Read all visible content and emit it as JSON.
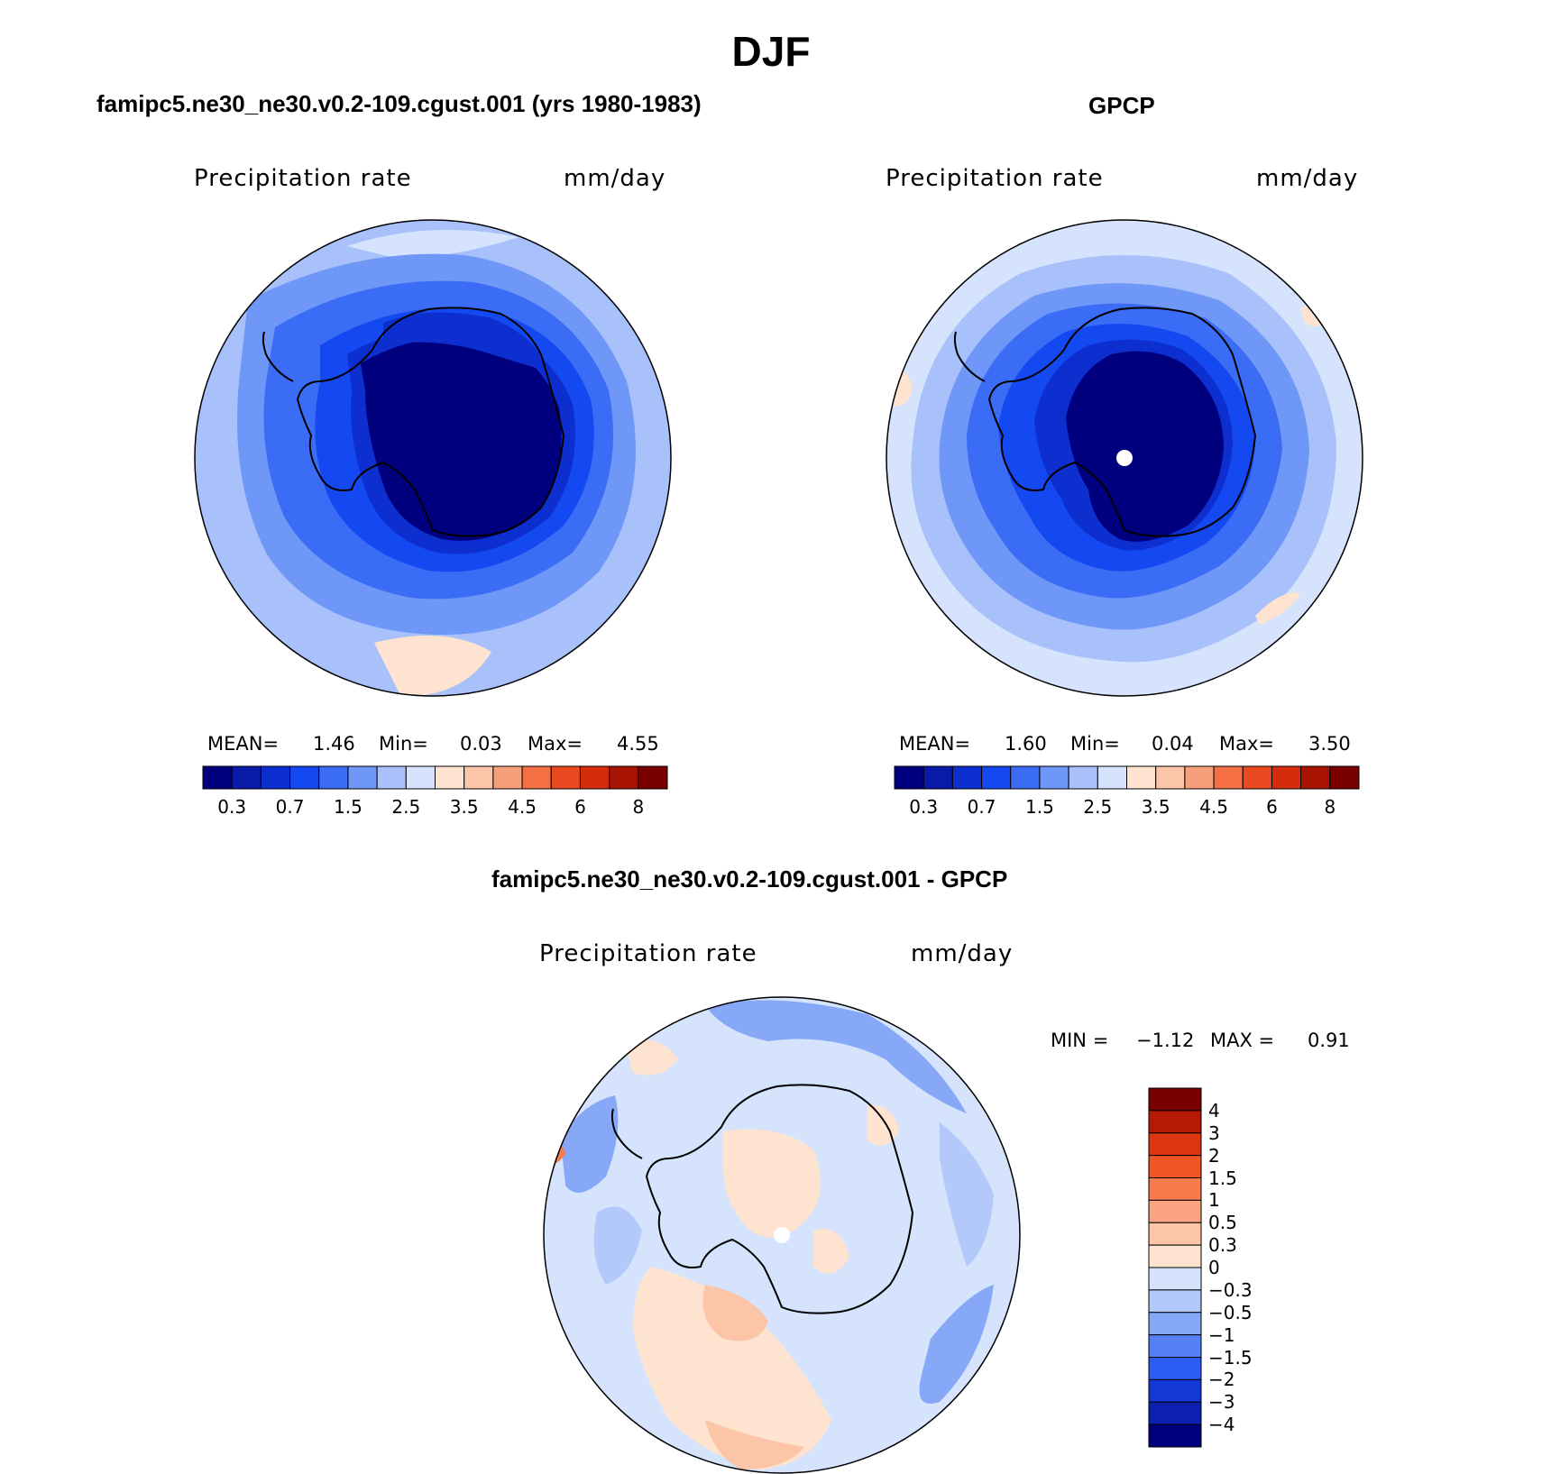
{
  "title": "DJF",
  "panels": [
    {
      "title": "famipc5.ne30_ne30.v0.2-109.cgust.001 (yrs 1980-1983)",
      "variable": "Precipitation rate",
      "units": "mm/day",
      "stats": {
        "mean_label": "MEAN=",
        "mean": "1.46",
        "min_label": "Min=",
        "min": "0.03",
        "max_label": "Max=",
        "max": "4.55"
      }
    },
    {
      "title": "GPCP",
      "variable": "Precipitation rate",
      "units": "mm/day",
      "stats": {
        "mean_label": "MEAN=",
        "mean": "1.60",
        "min_label": "Min=",
        "min": "0.04",
        "max_label": "Max=",
        "max": "3.50"
      }
    },
    {
      "title": "famipc5.ne30_ne30.v0.2-109.cgust.001 - GPCP",
      "variable": "Precipitation rate",
      "units": "mm/day",
      "stats": {
        "min_label": "MIN =",
        "min": "−1.12",
        "max_label": "MAX =",
        "max": "0.91"
      }
    }
  ],
  "colorbar_top": {
    "orientation": "horizontal",
    "tick_labels": [
      "0.3",
      "0.7",
      "1.5",
      "2.5",
      "3.5",
      "4.5",
      "6",
      "8"
    ],
    "colors": [
      "#00007f",
      "#0a1aa8",
      "#0d2fd0",
      "#1448f0",
      "#3a6cf5",
      "#6f97f7",
      "#a9c1fa",
      "#d5e4fc",
      "#fde3d0",
      "#fcc4a8",
      "#f79e7a",
      "#f46f44",
      "#ea4a1f",
      "#d42c0c",
      "#a81404",
      "#7a0000"
    ]
  },
  "colorbar_diff": {
    "orientation": "vertical",
    "tick_labels": [
      "4",
      "3",
      "2",
      "1.5",
      "1",
      "0.5",
      "0.3",
      "0",
      "−0.3",
      "−0.5",
      "−1",
      "−1.5",
      "−2",
      "−3",
      "−4"
    ],
    "colors": [
      "#7a0000",
      "#b41a04",
      "#dc3610",
      "#ef5526",
      "#f67c4d",
      "#fba483",
      "#fcc5a8",
      "#fde3d0",
      "#d5e4fc",
      "#b2c9fa",
      "#86a8f7",
      "#5580f4",
      "#2c5cf1",
      "#1238d6",
      "#0b20b0",
      "#00007f"
    ]
  },
  "map_colors": {
    "level_0": "#00007f",
    "level_1": "#0a1aa8",
    "level_2": "#0d2fd0",
    "level_3": "#1448f0",
    "level_4": "#3a6cf5",
    "level_5": "#6f97f7",
    "level_6": "#a9c1fa",
    "level_7": "#d5e4fc",
    "level_8": "#fde3d0",
    "level_9": "#fcc4a8",
    "diff_neg_small": "#d5e4fc",
    "diff_neg_mid": "#b2c9fa",
    "diff_neg_large": "#86a8f7",
    "diff_pos_small": "#fde3d0",
    "diff_pos_mid": "#fcc5a8",
    "diff_pos_large": "#f67c4d"
  }
}
